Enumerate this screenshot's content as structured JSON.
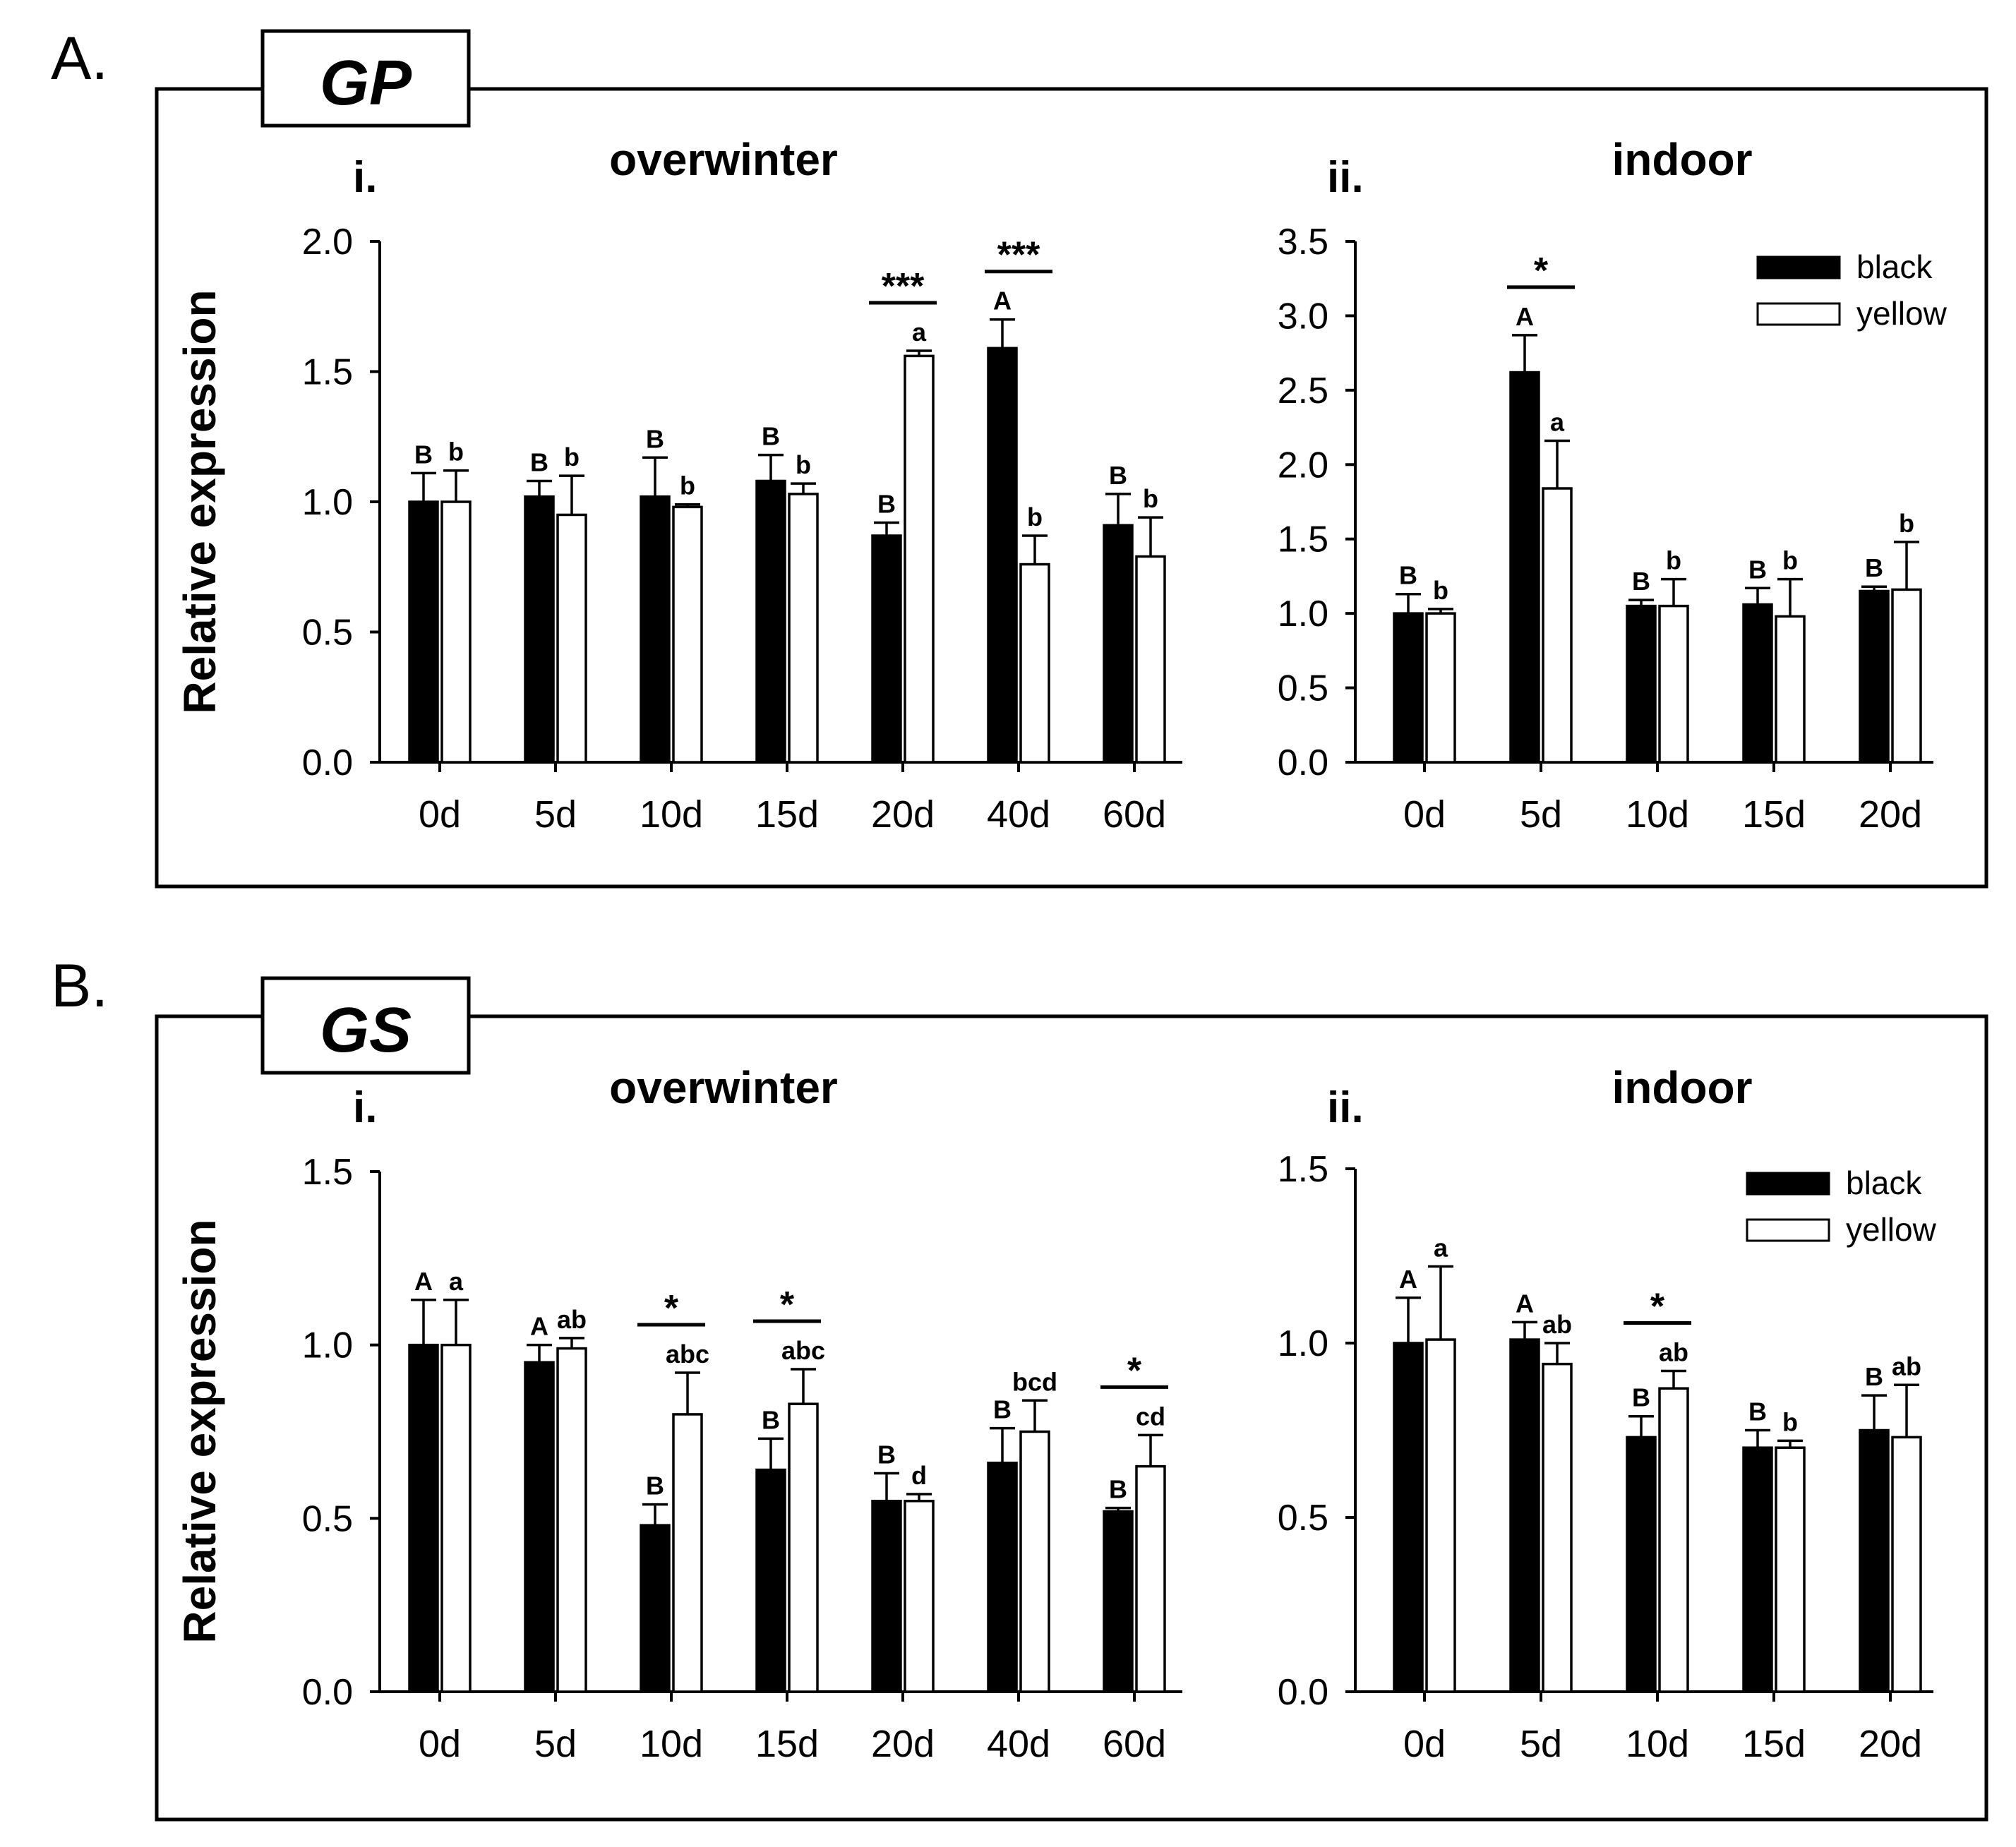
{
  "y_axis_label": "Relative expression",
  "legend": {
    "black": "black",
    "yellow": "yellow",
    "colors": {
      "black": "#000000",
      "yellow": "#ffffff"
    }
  },
  "panels": [
    {
      "letter": "A.",
      "gene": "GP"
    },
    {
      "letter": "B.",
      "gene": "GS"
    }
  ],
  "chart_data": [
    {
      "type": "bar",
      "panel": "A",
      "gene": "GP",
      "subpanel": "i.",
      "title": "overwinter",
      "ylabel": "Relative expression",
      "ylim": [
        0,
        2.0
      ],
      "yticks": [
        "0.0",
        "0.5",
        "1.0",
        "1.5",
        "2.0"
      ],
      "categories": [
        "0d",
        "5d",
        "10d",
        "15d",
        "20d",
        "40d",
        "60d"
      ],
      "series": [
        {
          "name": "black",
          "values": [
            1.0,
            1.02,
            1.02,
            1.08,
            0.87,
            1.59,
            0.91
          ],
          "errors": [
            0.11,
            0.06,
            0.15,
            0.1,
            0.05,
            0.11,
            0.12
          ],
          "letters": [
            "B",
            "B",
            "B",
            "B",
            "B",
            "A",
            "B"
          ]
        },
        {
          "name": "yellow",
          "values": [
            1.0,
            0.95,
            0.98,
            1.03,
            1.56,
            0.76,
            0.79
          ],
          "errors": [
            0.12,
            0.15,
            0.01,
            0.04,
            0.02,
            0.11,
            0.15
          ],
          "letters": [
            "b",
            "b",
            "b",
            "b",
            "a",
            "b",
            "b"
          ]
        }
      ],
      "significance": [
        {
          "category": "20d",
          "label": "***"
        },
        {
          "category": "40d",
          "label": "***"
        }
      ]
    },
    {
      "type": "bar",
      "panel": "A",
      "gene": "GP",
      "subpanel": "ii.",
      "title": "indoor",
      "ylim": [
        0,
        3.5
      ],
      "yticks": [
        "0.0",
        "0.5",
        "1.0",
        "1.5",
        "2.0",
        "2.5",
        "3.0",
        "3.5"
      ],
      "categories": [
        "0d",
        "5d",
        "10d",
        "15d",
        "20d"
      ],
      "legend_position": "top-right",
      "series": [
        {
          "name": "black",
          "values": [
            1.0,
            2.62,
            1.05,
            1.06,
            1.15
          ],
          "errors": [
            0.13,
            0.25,
            0.04,
            0.11,
            0.03
          ],
          "letters": [
            "B",
            "A",
            "B",
            "B",
            "B"
          ]
        },
        {
          "name": "yellow",
          "values": [
            1.0,
            1.84,
            1.05,
            0.98,
            1.16
          ],
          "errors": [
            0.03,
            0.32,
            0.18,
            0.25,
            0.32
          ],
          "letters": [
            "b",
            "a",
            "b",
            "b",
            "b"
          ]
        }
      ],
      "significance": [
        {
          "category": "5d",
          "label": "*"
        }
      ]
    },
    {
      "type": "bar",
      "panel": "B",
      "gene": "GS",
      "subpanel": "i.",
      "title": "overwinter",
      "ylabel": "Relative expression",
      "ylim": [
        0,
        1.5
      ],
      "yticks": [
        "0.0",
        "0.5",
        "1.0",
        "1.5"
      ],
      "categories": [
        "0d",
        "5d",
        "10d",
        "15d",
        "20d",
        "40d",
        "60d"
      ],
      "series": [
        {
          "name": "black",
          "values": [
            1.0,
            0.95,
            0.48,
            0.64,
            0.55,
            0.66,
            0.52
          ],
          "errors": [
            0.13,
            0.05,
            0.06,
            0.09,
            0.08,
            0.1,
            0.01
          ],
          "letters": [
            "A",
            "A",
            "B",
            "B",
            "B",
            "B",
            "B"
          ]
        },
        {
          "name": "yellow",
          "values": [
            1.0,
            0.99,
            0.8,
            0.83,
            0.55,
            0.75,
            0.65
          ],
          "errors": [
            0.13,
            0.03,
            0.12,
            0.1,
            0.02,
            0.09,
            0.09
          ],
          "letters": [
            "a",
            "ab",
            "abc",
            "abc",
            "d",
            "bcd",
            "cd"
          ]
        }
      ],
      "significance": [
        {
          "category": "10d",
          "label": "*"
        },
        {
          "category": "15d",
          "label": "*"
        },
        {
          "category": "60d",
          "label": "*"
        }
      ]
    },
    {
      "type": "bar",
      "panel": "B",
      "gene": "GS",
      "subpanel": "ii.",
      "title": "indoor",
      "ylim": [
        0,
        1.5
      ],
      "yticks": [
        "0.0",
        "0.5",
        "1.0",
        "1.5"
      ],
      "categories": [
        "0d",
        "5d",
        "10d",
        "15d",
        "20d"
      ],
      "legend_position": "top-right",
      "series": [
        {
          "name": "black",
          "values": [
            1.0,
            1.01,
            0.73,
            0.7,
            0.75
          ],
          "errors": [
            0.13,
            0.05,
            0.06,
            0.05,
            0.1
          ],
          "letters": [
            "A",
            "A",
            "B",
            "B",
            "B"
          ]
        },
        {
          "name": "yellow",
          "values": [
            1.01,
            0.94,
            0.87,
            0.7,
            0.73
          ],
          "errors": [
            0.21,
            0.06,
            0.05,
            0.02,
            0.15
          ],
          "letters": [
            "a",
            "ab",
            "ab",
            "b",
            "ab"
          ]
        }
      ],
      "significance": [
        {
          "category": "10d",
          "label": "*"
        }
      ]
    }
  ]
}
